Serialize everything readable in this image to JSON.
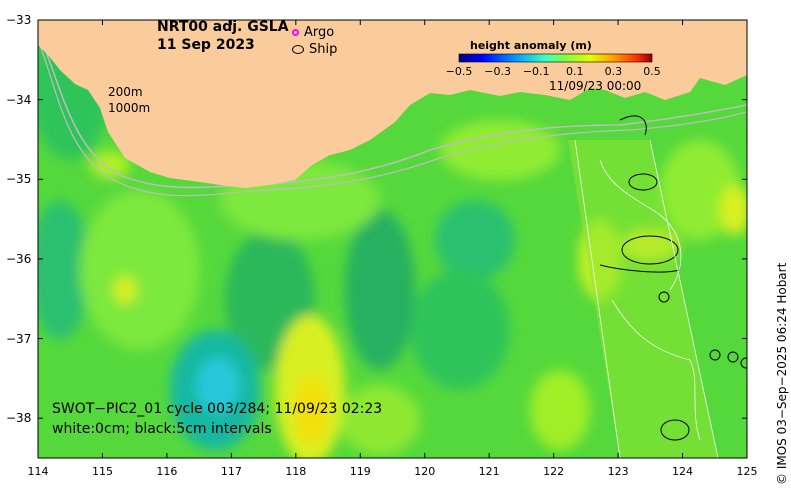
{
  "title": {
    "line1": "NRT00 adj. GSLA",
    "line2": "11 Sep 2023"
  },
  "legend": {
    "argo_label": "Argo",
    "ship_label": "Ship"
  },
  "depth_labels": {
    "d200": "200m",
    "d1000": "1000m"
  },
  "colorbar": {
    "title": "height anomaly (m)",
    "min": -0.5,
    "max": 0.5,
    "ticks": [
      "−0.5",
      "−0.3",
      "−0.1",
      "0.1",
      "0.3",
      "0.5"
    ],
    "colors": [
      "#00007f",
      "#0000ff",
      "#0080ff",
      "#00e0ff",
      "#40ffbf",
      "#80ff80",
      "#bfff40",
      "#ffff00",
      "#ffa000",
      "#ff4000",
      "#a00000"
    ]
  },
  "swath_timestamp": "11/09/23 00:00",
  "annotation": {
    "line1": "SWOT−PIC2_01 cycle 003/284; 11/09/23 02:23",
    "line2": "white:0cm; black:5cm intervals"
  },
  "axes": {
    "lat_ticks": [
      "−33",
      "−34",
      "−35",
      "−36",
      "−37",
      "−38"
    ],
    "lon_ticks": [
      "114",
      "115",
      "116",
      "117",
      "118",
      "119",
      "120",
      "121",
      "122",
      "123",
      "124",
      "125"
    ],
    "lat_range": [
      -38.5,
      -33
    ],
    "lon_range": [
      114,
      125
    ]
  },
  "credit": "© IMOS 03−Sep−2025 06:24 Hobart",
  "colors": {
    "land": "#fbcc9b",
    "sea_base": "#55d83c",
    "isobath": "#bdbdbd"
  }
}
